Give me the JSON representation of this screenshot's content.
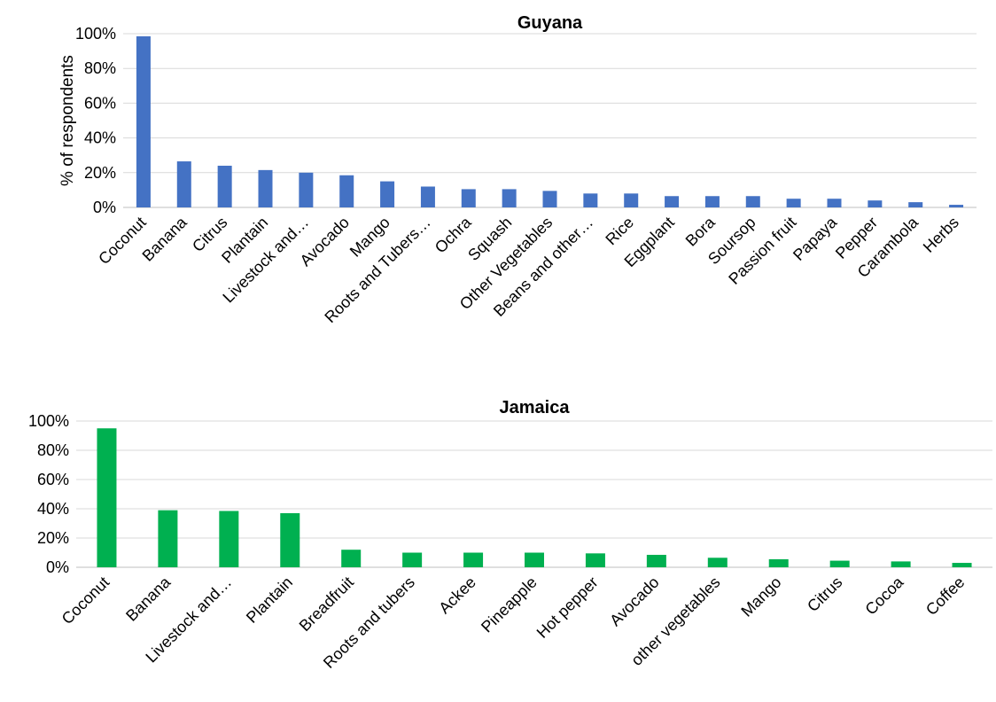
{
  "chart_data": [
    {
      "type": "bar",
      "title": "Guyana",
      "ylabel": "% of respondents",
      "xlabel": "",
      "ylim": [
        0,
        100
      ],
      "yticks": [
        "0%",
        "20%",
        "40%",
        "60%",
        "80%",
        "100%"
      ],
      "grid": true,
      "legend": "none",
      "color": "#4472C4",
      "categories": [
        "Coconut",
        "Banana",
        "Citrus",
        "Plantain",
        "Livestock and…",
        "Avocado",
        "Mango",
        "Roots and Tubers…",
        "Ochra",
        "Squash",
        "Other Vegetables",
        "Beans and other…",
        "Rice",
        "Eggplant",
        "Bora",
        "Soursop",
        "Passion fruit",
        "Papaya",
        "Pepper",
        "Carambola",
        "Herbs"
      ],
      "values": [
        98.5,
        26.5,
        24,
        21.5,
        20,
        18.5,
        15,
        12,
        10.5,
        10.5,
        9.5,
        8,
        8,
        6.5,
        6.5,
        6.5,
        5,
        5,
        4,
        3,
        1.5
      ]
    },
    {
      "type": "bar",
      "title": "Jamaica",
      "ylabel": "",
      "xlabel": "",
      "ylim": [
        0,
        100
      ],
      "yticks": [
        "0%",
        "20%",
        "40%",
        "60%",
        "80%",
        "100%"
      ],
      "grid": true,
      "legend": "none",
      "color": "#00B050",
      "categories": [
        "Coconut",
        "Banana",
        "Livestock and…",
        "Plantain",
        "Breadfruit",
        "Roots and tubers",
        "Ackee",
        "Pineapple",
        "Hot pepper",
        "Avocado",
        "other vegetables",
        "Mango",
        "Citrus",
        "Cocoa",
        "Coffee"
      ],
      "values": [
        95,
        39,
        38.5,
        37,
        12,
        10,
        10,
        10,
        9.5,
        8.5,
        6.5,
        5.5,
        4.5,
        4,
        3
      ]
    }
  ]
}
